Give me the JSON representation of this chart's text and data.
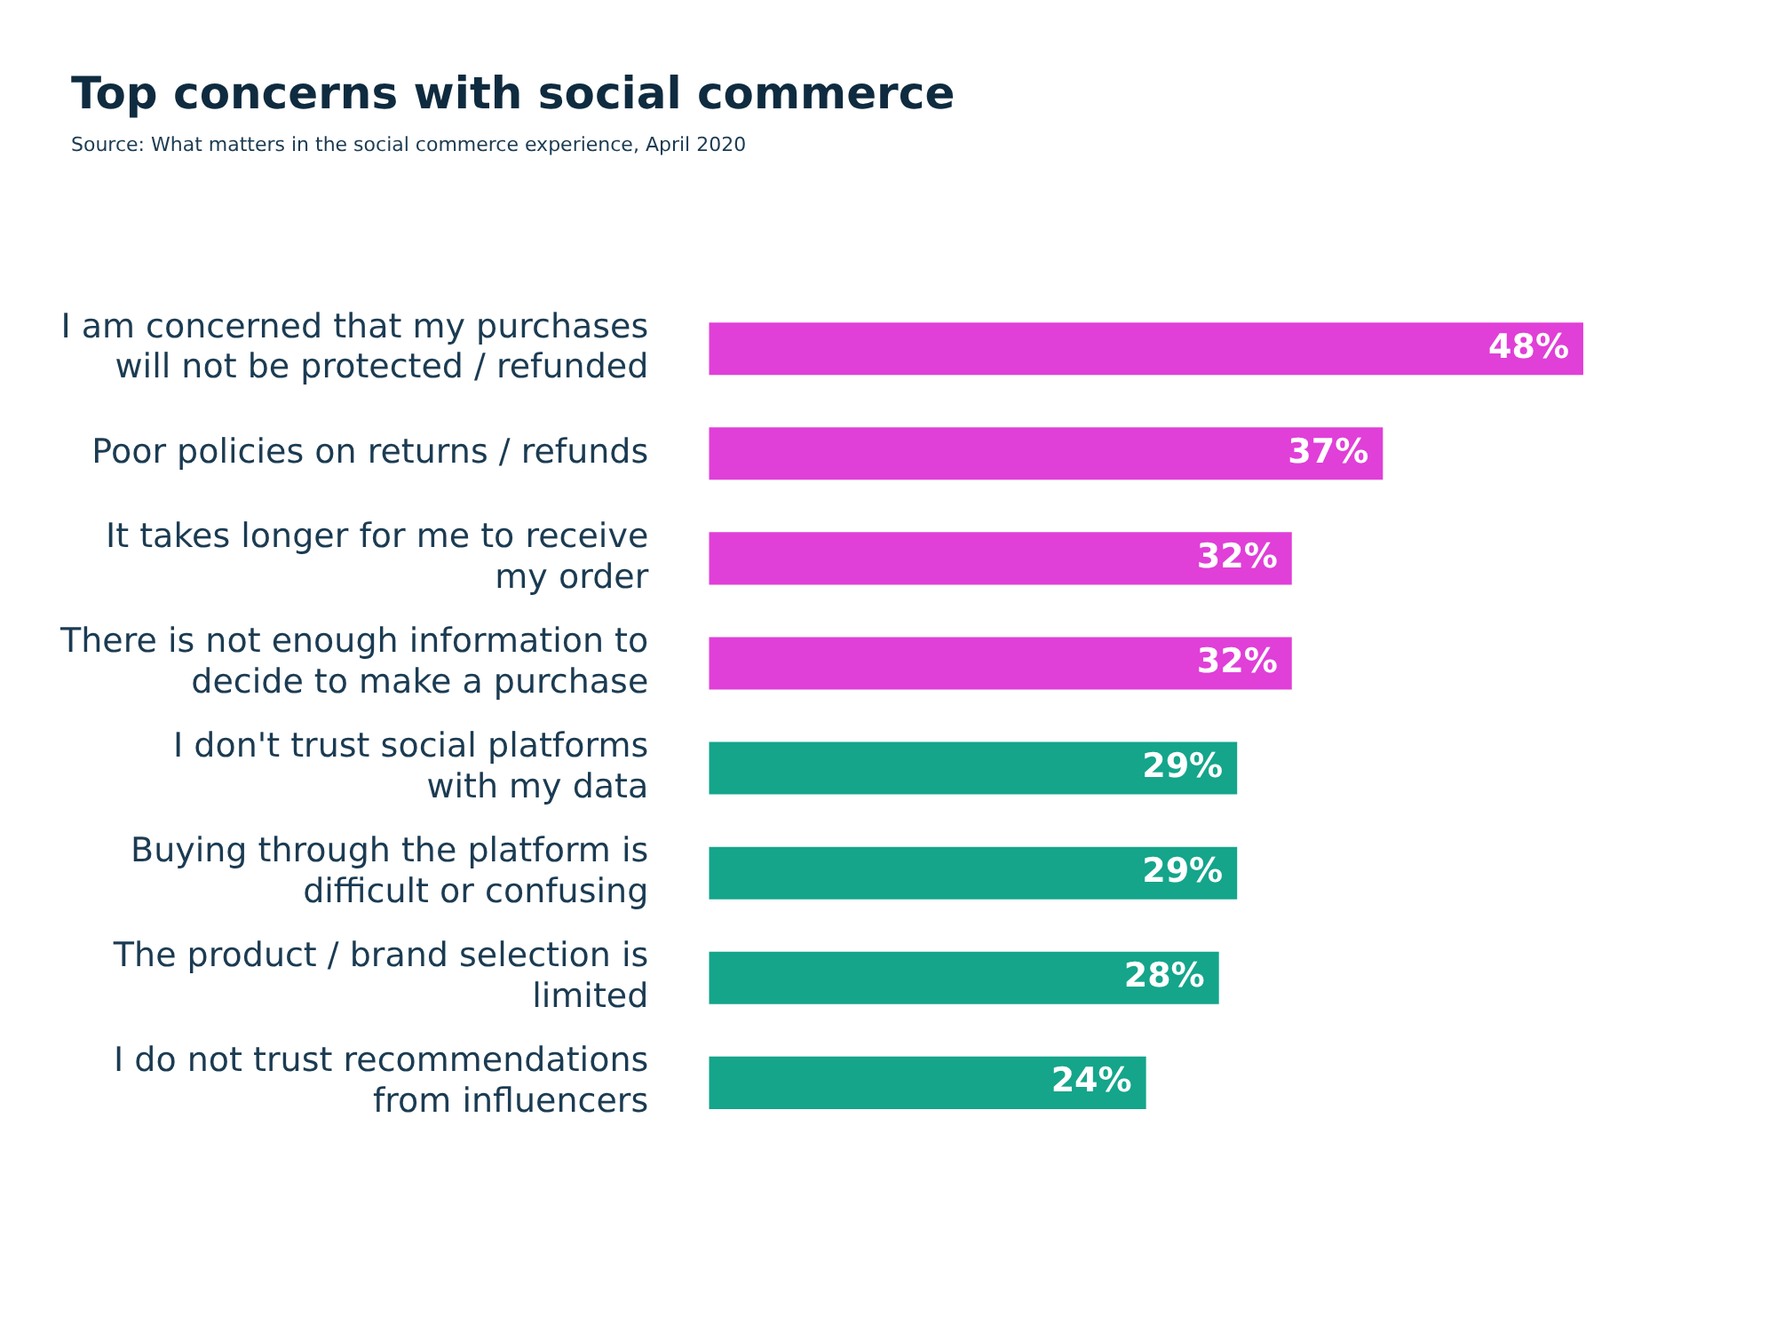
{
  "chart_data": {
    "type": "bar",
    "orientation": "horizontal",
    "title": "Top concerns with social commerce",
    "annotations": [
      "Source: What matters in the social commerce experience, April 2020"
    ],
    "categories": [
      "I am concerned that my purchases will not be protected / refunded",
      "Poor policies on returns / refunds",
      "It takes longer for me to receive my order",
      "There is not enough information to decide to make a purchase",
      "I don't trust social platforms with my data",
      "Buying through the platform is difficult or confusing",
      "The product / brand selection is limited",
      "I do not trust recommendations from influencers"
    ],
    "values": [
      48,
      37,
      32,
      32,
      29,
      29,
      28,
      24
    ],
    "value_labels": [
      "48%",
      "37%",
      "32%",
      "32%",
      "29%",
      "29%",
      "28%",
      "24%"
    ],
    "colors": [
      "#e03fd8",
      "#e03fd8",
      "#e03fd8",
      "#e03fd8",
      "#14a58b",
      "#14a58b",
      "#14a58b",
      "#14a58b"
    ],
    "data_labels": true
  }
}
